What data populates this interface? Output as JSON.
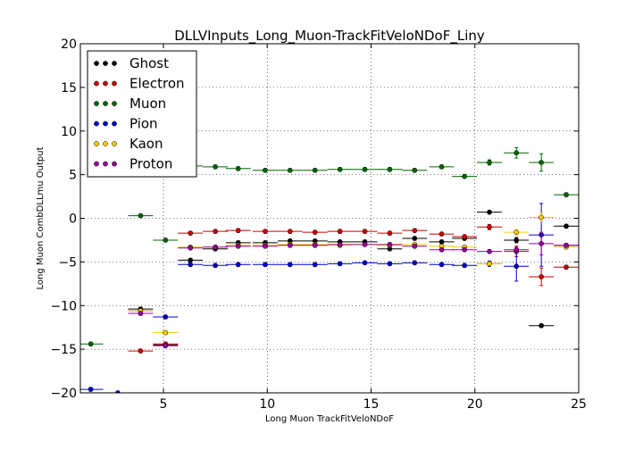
{
  "chart_data": {
    "type": "scatter",
    "title": "DLLVInputs_Long_Muon-TrackFitVeloNDoF_Liny",
    "xlabel": "Long Muon TrackFitVeloNDoF",
    "ylabel": "Long Muon CombDLLmu Output",
    "xlim": [
      1,
      25
    ],
    "ylim": [
      -20,
      20
    ],
    "xticks": [
      5,
      10,
      15,
      20,
      25
    ],
    "yticks": [
      -20,
      -15,
      -10,
      -5,
      0,
      5,
      10,
      15,
      20
    ],
    "xtick_labels": [
      "5",
      "10",
      "15",
      "20",
      "25"
    ],
    "ytick_labels": [
      "−20",
      "−15",
      "−10",
      "−5",
      "0",
      "5",
      "10",
      "15",
      "20"
    ],
    "grid": true,
    "legend_position": "top-left",
    "x_half_width": 0.6,
    "series": [
      {
        "name": "Ghost",
        "color": "#000000",
        "x": [
          3.9,
          5.1,
          6.3,
          7.5,
          8.6,
          9.9,
          11.1,
          12.3,
          13.5,
          14.7,
          15.9,
          17.1,
          18.4,
          19.5,
          20.7,
          22.0,
          23.2,
          24.4
        ],
        "y": [
          -10.4,
          -14.5,
          -4.8,
          -3.5,
          -2.8,
          -2.8,
          -2.6,
          -2.6,
          -2.7,
          -2.7,
          -3.5,
          -2.3,
          -2.7,
          -2.3,
          0.7,
          -2.5,
          -12.3,
          -0.9
        ],
        "err": [
          0.2,
          0.2,
          0.2,
          0.2,
          0.2,
          0.2,
          0.2,
          0.2,
          0.2,
          0.2,
          0.2,
          0.2,
          0.2,
          0.2,
          0.2,
          0.3,
          0.2,
          0.2
        ]
      },
      {
        "name": "Electron",
        "color": "#cc0000",
        "x": [
          3.9,
          5.1,
          6.3,
          7.5,
          8.6,
          9.9,
          11.1,
          12.3,
          13.5,
          14.7,
          15.9,
          17.1,
          18.4,
          19.5,
          20.7,
          22.0,
          23.2,
          24.4
        ],
        "y": [
          -15.2,
          -14.4,
          -1.7,
          -1.5,
          -1.4,
          -1.5,
          -1.5,
          -1.6,
          -1.5,
          -1.5,
          -1.7,
          -1.4,
          -1.8,
          -2.1,
          -1.0,
          -3.8,
          -6.7,
          -5.6
        ],
        "err": [
          0.2,
          0.2,
          0.2,
          0.2,
          0.2,
          0.2,
          0.2,
          0.2,
          0.2,
          0.2,
          0.2,
          0.2,
          0.2,
          0.2,
          0.3,
          0.6,
          1.0,
          0.2
        ]
      },
      {
        "name": "Muon",
        "color": "#006600",
        "x": [
          1.5,
          3.9,
          5.1,
          6.3,
          7.5,
          8.6,
          9.9,
          11.1,
          12.3,
          13.5,
          14.7,
          15.9,
          17.1,
          18.4,
          19.5,
          20.7,
          22.0,
          23.2,
          24.4
        ],
        "y": [
          -14.4,
          0.3,
          -2.5,
          6.0,
          5.9,
          5.7,
          5.5,
          5.5,
          5.5,
          5.6,
          5.6,
          5.6,
          5.5,
          5.9,
          4.8,
          6.4,
          7.5,
          6.4,
          2.7
        ],
        "err": [
          0.2,
          0.2,
          0.2,
          0.2,
          0.2,
          0.2,
          0.2,
          0.2,
          0.2,
          0.2,
          0.2,
          0.2,
          0.2,
          0.2,
          0.2,
          0.3,
          0.6,
          1.0,
          0.2
        ]
      },
      {
        "name": "Pion",
        "color": "#0000cc",
        "x": [
          1.5,
          2.8,
          3.9,
          5.1,
          6.3,
          7.5,
          8.6,
          9.9,
          11.1,
          12.3,
          13.5,
          14.7,
          15.9,
          17.1,
          18.4,
          19.5,
          20.7,
          22.0,
          23.2,
          24.4
        ],
        "y": [
          -19.6,
          -20.0,
          -10.6,
          -11.3,
          -5.3,
          -5.4,
          -5.3,
          -5.3,
          -5.3,
          -5.3,
          -5.2,
          -5.1,
          -5.2,
          -5.1,
          -5.3,
          -5.4,
          -5.2,
          -5.5,
          -1.9,
          -3.1
        ],
        "err": [
          0.2,
          0.2,
          0.2,
          0.2,
          0.2,
          0.2,
          0.2,
          0.2,
          0.2,
          0.2,
          0.2,
          0.2,
          0.2,
          0.2,
          0.2,
          0.2,
          0.3,
          1.7,
          3.6,
          0.2
        ]
      },
      {
        "name": "Kaon",
        "color": "#ffcc00",
        "x": [
          3.9,
          5.1,
          6.3,
          7.5,
          8.6,
          9.9,
          11.1,
          12.3,
          13.5,
          14.7,
          15.9,
          17.1,
          18.4,
          19.5,
          20.7,
          22.0,
          23.2,
          24.4
        ],
        "y": [
          -10.6,
          -13.1,
          -3.3,
          -3.3,
          -3.1,
          -3.1,
          -3.0,
          -3.0,
          -3.1,
          -3.0,
          -3.1,
          -3.0,
          -3.2,
          -3.3,
          -5.2,
          -1.6,
          0.1,
          -3.3
        ],
        "err": [
          0.2,
          0.2,
          0.2,
          0.2,
          0.2,
          0.2,
          0.2,
          0.2,
          0.2,
          0.2,
          0.2,
          0.2,
          0.2,
          0.2,
          0.2,
          0.3,
          0.5,
          0.2
        ]
      },
      {
        "name": "Proton",
        "color": "#990099",
        "x": [
          3.9,
          5.1,
          6.3,
          7.5,
          8.6,
          9.9,
          11.1,
          12.3,
          13.5,
          14.7,
          15.9,
          17.1,
          18.4,
          19.5,
          20.7,
          22.0,
          23.2,
          24.4
        ],
        "y": [
          -10.9,
          -14.6,
          -3.4,
          -3.3,
          -3.2,
          -3.2,
          -3.1,
          -3.1,
          -3.0,
          -3.0,
          -3.0,
          -3.2,
          -3.6,
          -3.6,
          -3.8,
          -3.6,
          -2.9,
          -3.1
        ],
        "err": [
          0.2,
          0.2,
          0.2,
          0.2,
          0.2,
          0.2,
          0.2,
          0.2,
          0.2,
          0.2,
          0.2,
          0.2,
          0.2,
          0.2,
          0.2,
          0.3,
          1.3,
          0.2
        ]
      }
    ]
  }
}
